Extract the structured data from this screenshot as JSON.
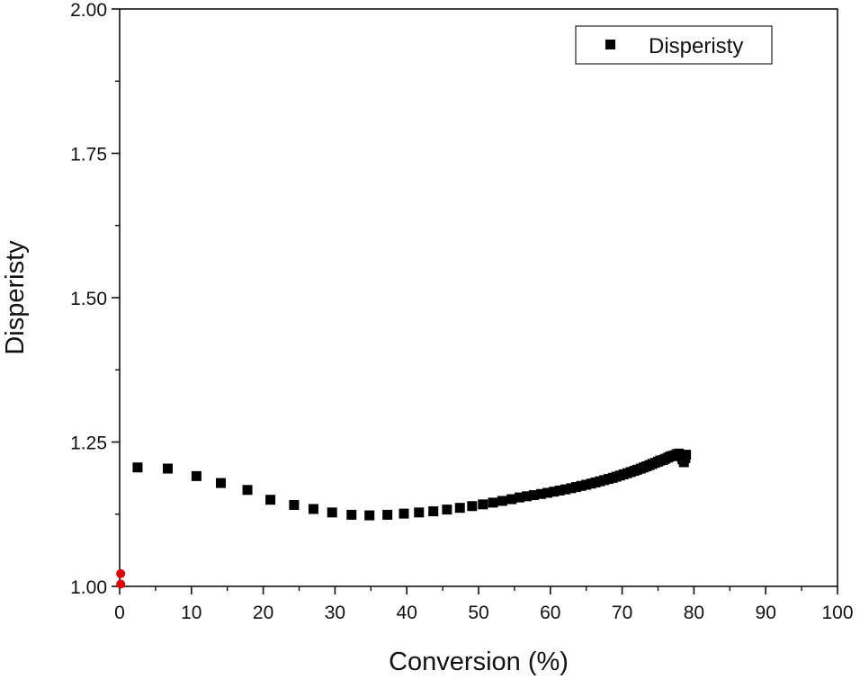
{
  "chart_data": {
    "type": "scatter",
    "title": "",
    "xlabel": "Conversion (%)",
    "ylabel": "Disperisty",
    "xlim": [
      0,
      100
    ],
    "ylim": [
      1.0,
      2.0
    ],
    "x_ticks": [
      0,
      10,
      20,
      30,
      40,
      50,
      60,
      70,
      80,
      90,
      100
    ],
    "y_ticks": [
      1.0,
      1.25,
      1.5,
      1.75,
      2.0
    ],
    "x_tick_labels": [
      "0",
      "10",
      "20",
      "30",
      "40",
      "50",
      "60",
      "70",
      "80",
      "90",
      "100"
    ],
    "y_tick_labels": [
      "1.00",
      "1.25",
      "1.50",
      "1.75",
      "2.00"
    ],
    "grid": false,
    "legend": {
      "position": "top-right",
      "entries": [
        "Disperisty"
      ]
    },
    "series": [
      {
        "name": "Disperisty",
        "marker": "square",
        "color": "#000000",
        "x": [
          2.5,
          6.7,
          10.7,
          14.1,
          17.8,
          21.0,
          24.3,
          27.0,
          29.6,
          32.3,
          34.8,
          37.3,
          39.6,
          41.7,
          43.7,
          45.6,
          47.4,
          49.1,
          50.6,
          52.0,
          53.3,
          54.6,
          55.7,
          56.7,
          57.7,
          58.7,
          59.6,
          60.5,
          61.3,
          62.1,
          62.9,
          63.6,
          64.3,
          65.0,
          65.7,
          66.3,
          66.9,
          67.5,
          68.1,
          68.7,
          69.2,
          69.7,
          70.2,
          70.7,
          71.2,
          71.7,
          72.1,
          72.6,
          73.0,
          73.4,
          73.8,
          74.2,
          74.6,
          75.0,
          75.3,
          75.7,
          76.0,
          76.4,
          76.7,
          77.0,
          77.3,
          77.6,
          77.9,
          78.2,
          78.4,
          78.6,
          78.8,
          78.9
        ],
        "y": [
          1.206,
          1.204,
          1.191,
          1.179,
          1.167,
          1.15,
          1.141,
          1.134,
          1.128,
          1.124,
          1.123,
          1.124,
          1.126,
          1.128,
          1.13,
          1.133,
          1.136,
          1.139,
          1.142,
          1.145,
          1.148,
          1.151,
          1.154,
          1.156,
          1.158,
          1.16,
          1.162,
          1.164,
          1.166,
          1.168,
          1.17,
          1.172,
          1.174,
          1.176,
          1.178,
          1.18,
          1.182,
          1.184,
          1.186,
          1.188,
          1.19,
          1.192,
          1.194,
          1.196,
          1.198,
          1.2,
          1.202,
          1.204,
          1.206,
          1.208,
          1.21,
          1.212,
          1.214,
          1.216,
          1.218,
          1.219,
          1.221,
          1.223,
          1.225,
          1.226,
          1.227,
          1.229,
          1.23,
          1.225,
          1.22,
          1.215,
          1.222,
          1.228
        ]
      },
      {
        "name": "",
        "marker": "circle",
        "color": "#e00000",
        "x": [
          0.15,
          0.15
        ],
        "y": [
          1.022,
          1.004
        ]
      }
    ]
  }
}
